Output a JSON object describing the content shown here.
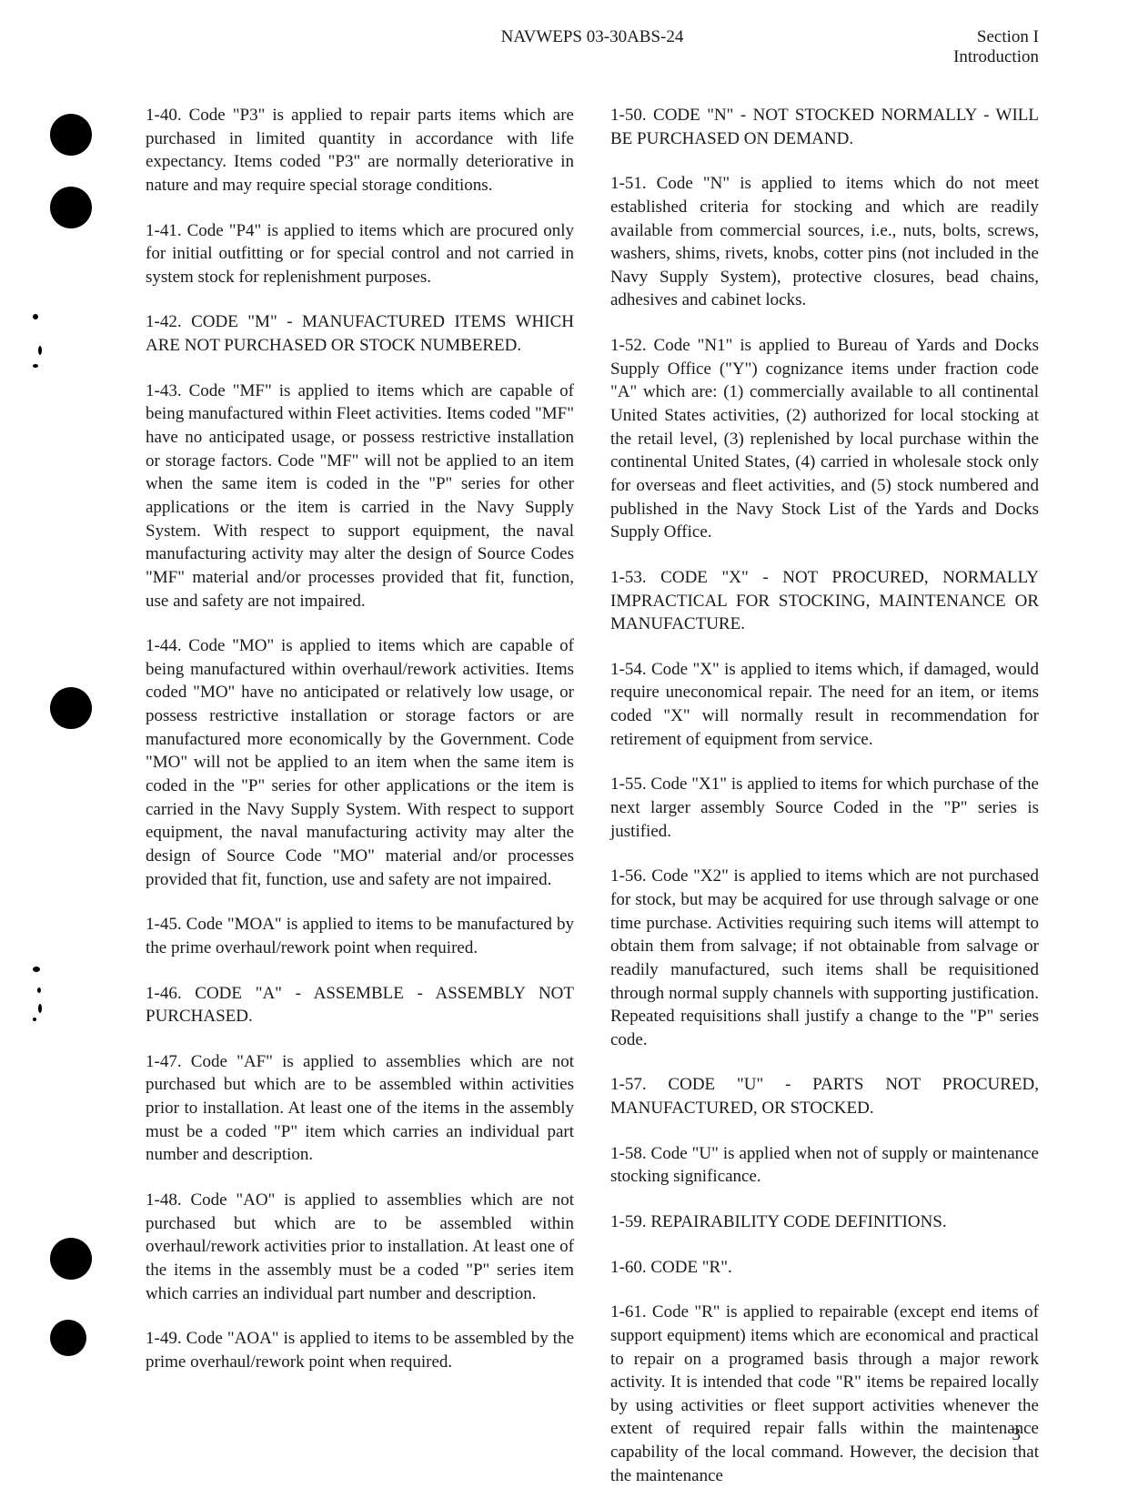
{
  "header": {
    "doc_id": "NAVWEPS 03-30ABS-24",
    "section_line1": "Section I",
    "section_line2": "Introduction"
  },
  "left_col": {
    "p140": "1-40. Code \"P3\" is applied to repair parts items which are purchased in limited quantity in accordance with life expectancy. Items coded \"P3\" are normally deteriorative in nature and may require special storage conditions.",
    "p141": "1-41. Code \"P4\" is applied to items which are procured only for initial outfitting or for special control and not carried in system stock for replenishment purposes.",
    "h142": "1-42. CODE \"M\" - MANUFACTURED ITEMS WHICH ARE NOT PURCHASED OR STOCK NUMBERED.",
    "p143": "1-43. Code \"MF\" is applied to items which are capable of being manufactured within Fleet activities. Items coded \"MF\" have no anticipated usage, or possess restrictive installation or storage factors. Code \"MF\" will not be applied to an item when the same item is coded in the \"P\" series for other applications or the item is carried in the Navy Supply System. With respect to support equipment, the naval manufacturing activity may alter the design of Source Codes \"MF\" material and/or processes provided that fit, function, use and safety are not impaired.",
    "p144": "1-44. Code \"MO\" is applied to items which are capable of being manufactured within overhaul/rework activities. Items coded \"MO\" have no anticipated or relatively low usage, or possess restrictive installation or storage factors or are manufactured more economically by the Government. Code \"MO\" will not be applied to an item when the same item is coded in the \"P\" series for other applications or the item is carried in the Navy Supply System. With respect to support equipment, the naval manufacturing activity may alter the design of Source Code \"MO\" material and/or processes provided that fit, function, use and safety are not impaired.",
    "p145": "1-45. Code \"MOA\" is applied to items to be manufactured by the prime overhaul/rework point when required.",
    "h146": "1-46. CODE \"A\" - ASSEMBLE - ASSEMBLY NOT PURCHASED.",
    "p147": "1-47. Code \"AF\" is applied to assemblies which are not purchased but which are to be assembled within activities prior to installation. At least one of the items in the assembly must be a coded \"P\" item which carries an individual part number and description.",
    "p148": "1-48. Code \"AO\" is applied to assemblies which are not purchased but which are to be assembled within overhaul/rework activities prior to installation. At least one of the items in the assembly must be a coded \"P\" series item which carries an individual part number and description.",
    "p149": "1-49. Code \"AOA\" is applied to items to be assembled by the prime overhaul/rework point when required."
  },
  "right_col": {
    "h150": "1-50. CODE \"N\" - NOT STOCKED NORMALLY - WILL BE PURCHASED ON DEMAND.",
    "p151": "1-51. Code \"N\" is applied to items which do not meet established criteria for stocking and which are readily available from commercial sources, i.e., nuts, bolts, screws, washers, shims, rivets, knobs, cotter pins (not included in the Navy Supply System), protective closures, bead chains, adhesives and cabinet locks.",
    "p152": "1-52. Code \"N1\" is applied to Bureau of Yards and Docks Supply Office (\"Y\") cognizance items under fraction code \"A\" which are: (1) commercially available to all continental United States activities, (2) authorized for local stocking at the retail level, (3) replenished by local purchase within the continental United States, (4) carried in wholesale stock only for overseas and fleet activities, and (5) stock numbered and published in the Navy Stock List of the Yards and Docks Supply Office.",
    "h153": "1-53. CODE \"X\" - NOT PROCURED, NORMALLY IMPRACTICAL FOR STOCKING, MAINTENANCE OR MANUFACTURE.",
    "p154": "1-54. Code \"X\" is applied to items which, if damaged, would require uneconomical repair. The need for an item, or items coded \"X\" will normally result in recommendation for retirement of equipment from service.",
    "p155": "1-55. Code \"X1\" is applied to items for which purchase of the next larger assembly Source Coded in the \"P\" series is justified.",
    "p156": "1-56. Code \"X2\" is applied to items which are not purchased for stock, but may be acquired for use through salvage or one time purchase. Activities requiring such items will attempt to obtain them from salvage; if not obtainable from salvage or readily manufactured, such items shall be requisitioned through normal supply channels with supporting justification. Repeated requisitions shall justify a change to the \"P\" series code.",
    "h157": "1-57. CODE \"U\" - PARTS NOT PROCURED, MANUFACTURED, OR STOCKED.",
    "p158": "1-58. Code \"U\" is applied when not of supply or maintenance stocking significance.",
    "h159": "1-59. REPAIRABILITY CODE DEFINITIONS.",
    "h160": "1-60. CODE \"R\".",
    "p161": "1-61. Code \"R\" is applied to repairable (except end items of support equipment) items which are economical and practical to repair on a programed basis through a major rework activity. It is intended that code \"R\" items be repaired locally by using activities or fleet support activities whenever the extent of required repair falls within the maintenance capability of the local command. However, the decision that the maintenance"
  },
  "page_number": "3"
}
